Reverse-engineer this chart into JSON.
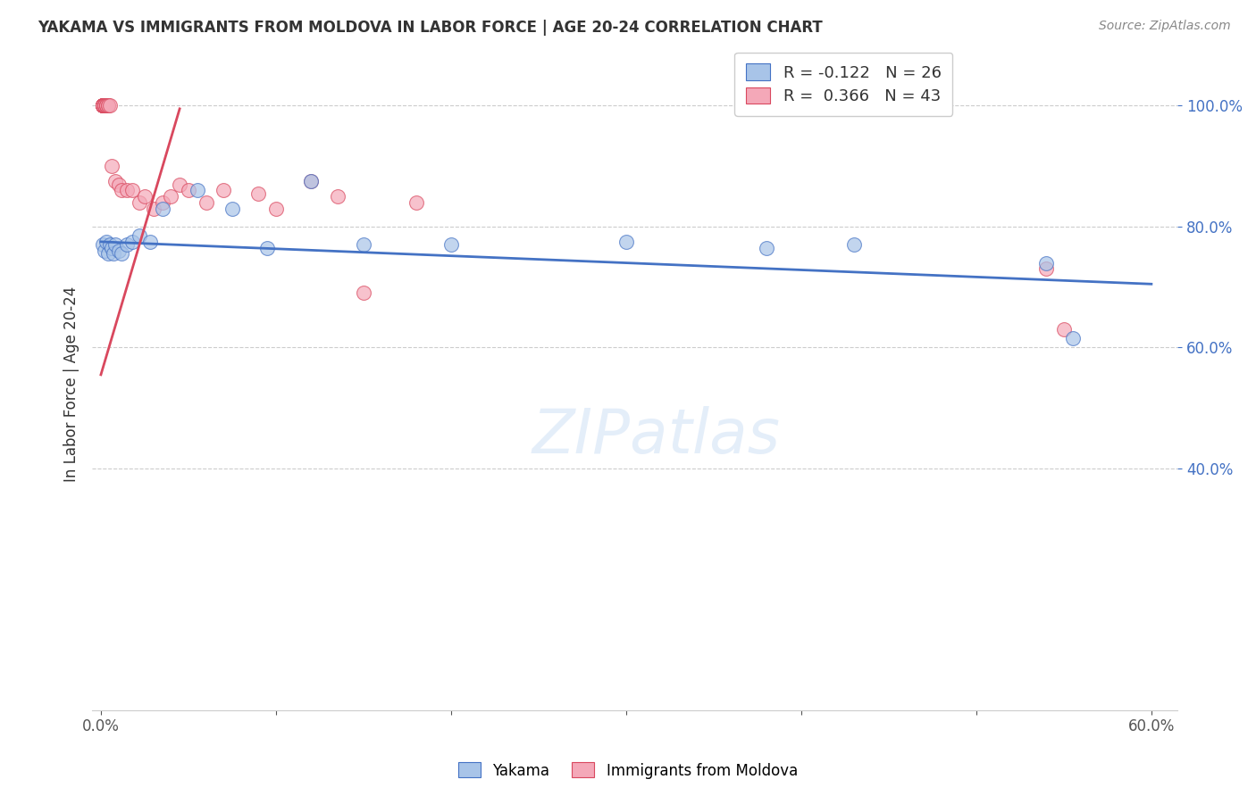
{
  "title": "YAKAMA VS IMMIGRANTS FROM MOLDOVA IN LABOR FORCE | AGE 20-24 CORRELATION CHART",
  "source": "Source: ZipAtlas.com",
  "ylabel": "In Labor Force | Age 20-24",
  "xlabel": "",
  "xlim": [
    -0.005,
    0.615
  ],
  "ylim": [
    0.0,
    1.08
  ],
  "yticks": [
    0.4,
    0.6,
    0.8,
    1.0
  ],
  "ytick_labels": [
    "40.0%",
    "60.0%",
    "80.0%",
    "100.0%"
  ],
  "xticks": [
    0.0,
    0.1,
    0.2,
    0.3,
    0.4,
    0.5,
    0.6
  ],
  "xtick_labels": [
    "0.0%",
    "",
    "",
    "",
    "",
    "",
    "60.0%"
  ],
  "blue_R": "-0.122",
  "blue_N": "26",
  "pink_R": "0.366",
  "pink_N": "43",
  "legend_label1": "Yakama",
  "legend_label2": "Immigrants from Moldova",
  "blue_color": "#a8c4e8",
  "pink_color": "#f4a8b8",
  "blue_line_color": "#4472c4",
  "pink_line_color": "#d9485e",
  "watermark": "ZIPatlas",
  "yakama_x": [
    0.001,
    0.002,
    0.003,
    0.004,
    0.005,
    0.006,
    0.007,
    0.008,
    0.01,
    0.012,
    0.015,
    0.018,
    0.022,
    0.028,
    0.035,
    0.055,
    0.075,
    0.095,
    0.12,
    0.15,
    0.2,
    0.3,
    0.38,
    0.43,
    0.54,
    0.555
  ],
  "yakama_y": [
    0.77,
    0.76,
    0.775,
    0.755,
    0.77,
    0.765,
    0.755,
    0.77,
    0.76,
    0.755,
    0.77,
    0.775,
    0.785,
    0.775,
    0.83,
    0.86,
    0.83,
    0.765,
    0.875,
    0.77,
    0.77,
    0.775,
    0.765,
    0.77,
    0.74,
    0.615
  ],
  "moldova_x": [
    0.001,
    0.001,
    0.001,
    0.001,
    0.001,
    0.001,
    0.001,
    0.001,
    0.001,
    0.002,
    0.002,
    0.002,
    0.002,
    0.002,
    0.003,
    0.003,
    0.003,
    0.004,
    0.004,
    0.005,
    0.006,
    0.008,
    0.01,
    0.012,
    0.015,
    0.018,
    0.022,
    0.025,
    0.03,
    0.035,
    0.04,
    0.045,
    0.05,
    0.06,
    0.07,
    0.09,
    0.1,
    0.12,
    0.135,
    0.15,
    0.18,
    0.54,
    0.55
  ],
  "moldova_y": [
    1.0,
    1.0,
    1.0,
    1.0,
    1.0,
    1.0,
    1.0,
    1.0,
    1.0,
    1.0,
    1.0,
    1.0,
    1.0,
    1.0,
    1.0,
    1.0,
    1.0,
    1.0,
    1.0,
    1.0,
    0.9,
    0.875,
    0.87,
    0.86,
    0.86,
    0.86,
    0.84,
    0.85,
    0.83,
    0.84,
    0.85,
    0.87,
    0.86,
    0.84,
    0.86,
    0.855,
    0.83,
    0.875,
    0.85,
    0.69,
    0.84,
    0.73,
    0.63
  ]
}
